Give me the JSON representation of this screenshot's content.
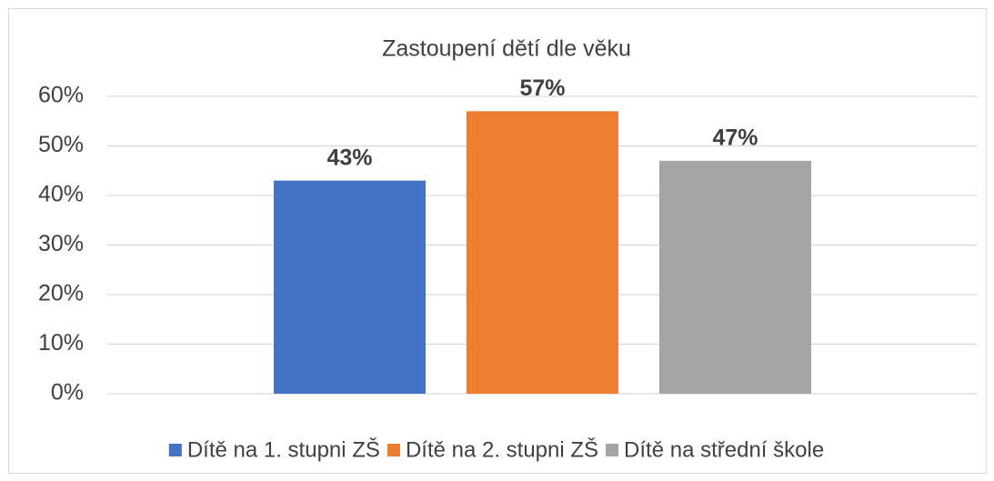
{
  "chart_data": {
    "type": "bar",
    "title": "Zastoupení dětí dle věku",
    "categories": [
      null
    ],
    "series": [
      {
        "name": "Dítě na 1. stupni ZŠ",
        "color": "#4472c4",
        "values": [
          43
        ],
        "value_labels": [
          "43%"
        ]
      },
      {
        "name": "Dítě na 2. stupni ZŠ",
        "color": "#ed7d31",
        "values": [
          57
        ],
        "value_labels": [
          "57%"
        ]
      },
      {
        "name": "Dítě na střední škole",
        "color": "#a5a5a5",
        "values": [
          47
        ],
        "value_labels": [
          "47%"
        ]
      }
    ],
    "ylim": [
      0,
      60
    ],
    "yticks": [
      {
        "value": 0,
        "label": "0%"
      },
      {
        "value": 10,
        "label": "10%"
      },
      {
        "value": 20,
        "label": "20%"
      },
      {
        "value": 30,
        "label": "30%"
      },
      {
        "value": 40,
        "label": "40%"
      },
      {
        "value": 50,
        "label": "50%"
      },
      {
        "value": 60,
        "label": "60%"
      }
    ],
    "grid": true,
    "legend": "bottom"
  }
}
